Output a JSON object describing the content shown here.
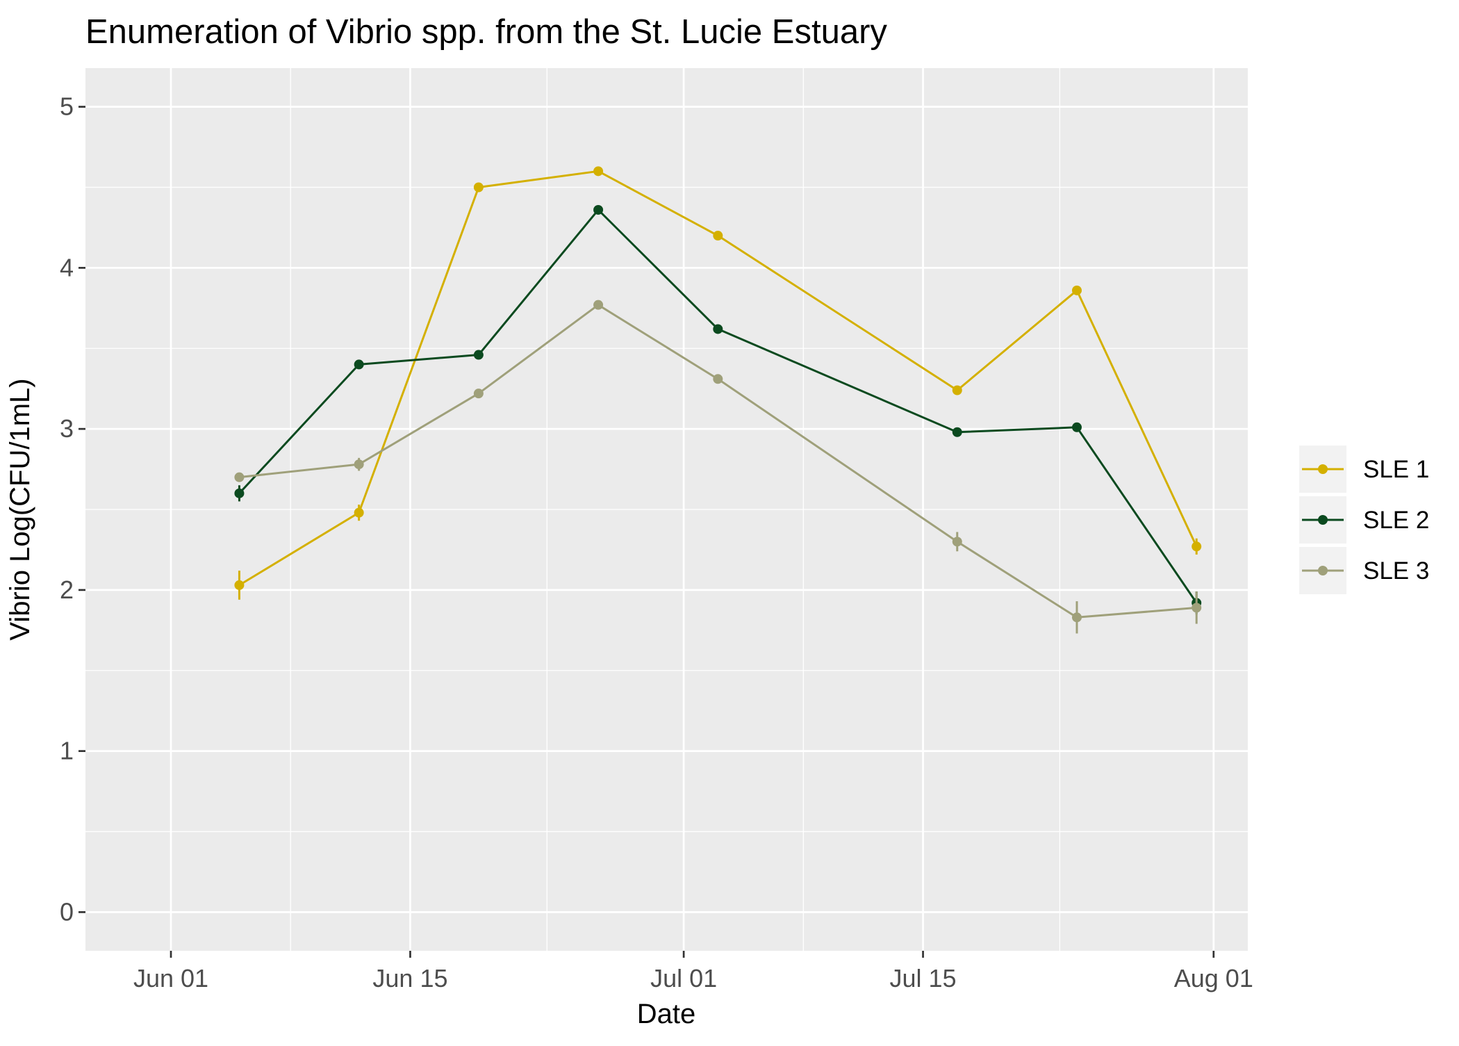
{
  "chart_data": {
    "type": "line",
    "title": "Enumeration of Vibrio spp. from the St. Lucie Estuary",
    "xlabel": "Date",
    "ylabel": "Vibrio Log(CFU/1mL)",
    "x_axis": {
      "kind": "date",
      "range": [
        "2023-05-27",
        "2023-08-03"
      ],
      "ticks": [
        {
          "date": "2023-06-01",
          "label": "Jun 01"
        },
        {
          "date": "2023-06-15",
          "label": "Jun 15"
        },
        {
          "date": "2023-07-01",
          "label": "Jul 01"
        },
        {
          "date": "2023-07-15",
          "label": "Jul 15"
        },
        {
          "date": "2023-08-01",
          "label": "Aug 01"
        }
      ],
      "minor_ticks": [
        "2023-06-08",
        "2023-06-23",
        "2023-07-08",
        "2023-07-23"
      ]
    },
    "y_axis": {
      "range": [
        -0.24,
        5.24
      ],
      "ticks": [
        0,
        1,
        2,
        3,
        4,
        5
      ],
      "tick_labels": [
        "0",
        "1",
        "2",
        "3",
        "4",
        "5"
      ],
      "minor_ticks": [
        0.5,
        1.5,
        2.5,
        3.5,
        4.5
      ]
    },
    "grid": true,
    "legend_position": "right",
    "x": [
      "2023-06-05",
      "2023-06-12",
      "2023-06-19",
      "2023-06-26",
      "2023-07-03",
      "2023-07-17",
      "2023-07-24",
      "2023-07-31"
    ],
    "series": [
      {
        "name": "SLE 1",
        "color": "#d4b000",
        "values": [
          2.03,
          2.48,
          4.5,
          4.6,
          4.2,
          3.24,
          3.86,
          2.27
        ],
        "errors": [
          0.09,
          0.05,
          0.0,
          0.0,
          0.0,
          0.0,
          0.0,
          0.05
        ]
      },
      {
        "name": "SLE 2",
        "color": "#0b4a1f",
        "values": [
          2.6,
          3.4,
          3.46,
          4.36,
          3.62,
          2.98,
          3.01,
          1.92
        ],
        "errors": [
          0.05,
          0.0,
          0.0,
          0.0,
          0.0,
          0.0,
          0.0,
          0.07
        ]
      },
      {
        "name": "SLE 3",
        "color": "#9fa07a",
        "values": [
          2.7,
          2.78,
          3.22,
          3.77,
          3.31,
          2.3,
          1.83,
          1.89
        ],
        "errors": [
          0.02,
          0.04,
          0.0,
          0.0,
          0.0,
          0.06,
          0.1,
          0.1
        ]
      }
    ]
  }
}
